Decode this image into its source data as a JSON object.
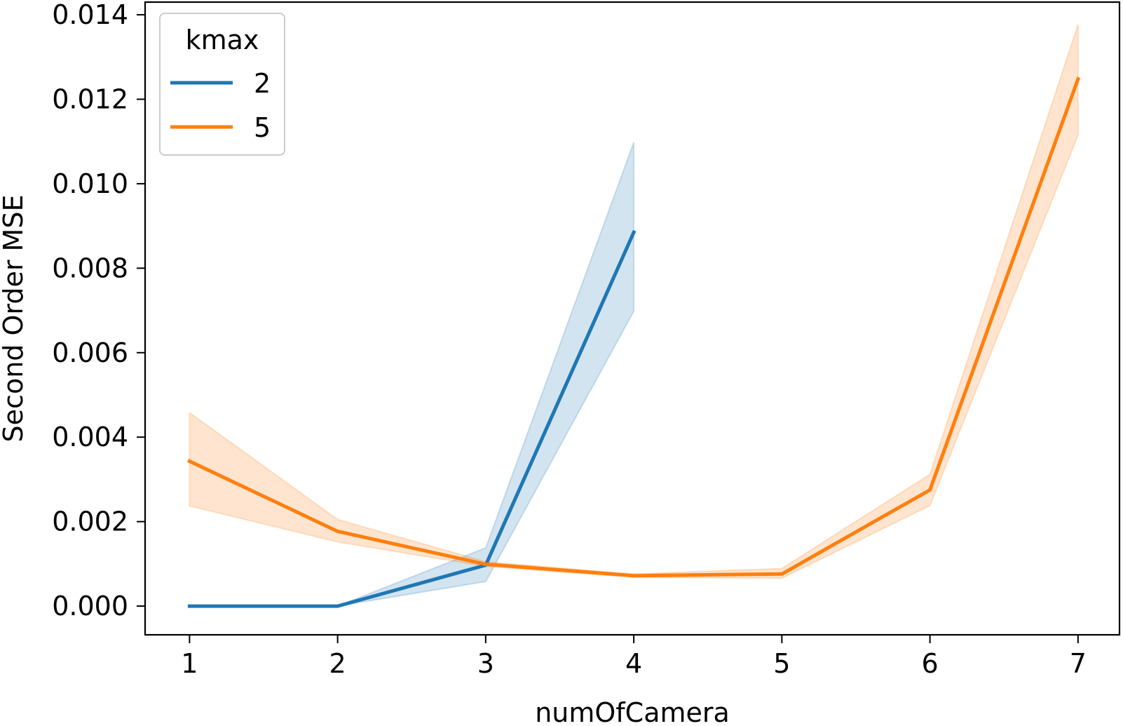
{
  "chart_data": {
    "type": "line",
    "title": "",
    "xlabel": "numOfCamera",
    "ylabel": "Second Order MSE",
    "xlim": [
      0.7,
      7.28
    ],
    "ylim": [
      -0.00068,
      0.0143
    ],
    "xticks": [
      1,
      2,
      3,
      4,
      5,
      6,
      7
    ],
    "xtick_labels": [
      "1",
      "2",
      "3",
      "4",
      "5",
      "6",
      "7"
    ],
    "yticks": [
      0,
      0.002,
      0.004,
      0.006,
      0.008,
      0.01,
      0.012,
      0.014
    ],
    "ytick_labels": [
      "0.000",
      "0.002",
      "0.004",
      "0.006",
      "0.008",
      "0.010",
      "0.012",
      "0.014"
    ],
    "grid": false,
    "legend": {
      "title": "kmax",
      "placement": "top-left"
    },
    "series": [
      {
        "name": "2",
        "color": "#1f77b4",
        "x": [
          1,
          2,
          3,
          4
        ],
        "y": [
          0.0,
          0.0,
          0.00097,
          0.00885
        ],
        "ci_low": [
          0.0,
          0.0,
          0.00058,
          0.00698
        ],
        "ci_high": [
          0.0,
          0.0,
          0.00138,
          0.01098
        ]
      },
      {
        "name": "5",
        "color": "#ff7f0e",
        "x": [
          1,
          2,
          3,
          4,
          5,
          6,
          7
        ],
        "y": [
          0.00343,
          0.00177,
          0.00099,
          0.00072,
          0.00076,
          0.00275,
          0.01248
        ],
        "ci_low": [
          0.00237,
          0.00152,
          0.00094,
          0.00068,
          0.00066,
          0.00238,
          0.01115
        ],
        "ci_high": [
          0.00458,
          0.00205,
          0.00105,
          0.00076,
          0.00089,
          0.00312,
          0.01377
        ]
      }
    ]
  }
}
